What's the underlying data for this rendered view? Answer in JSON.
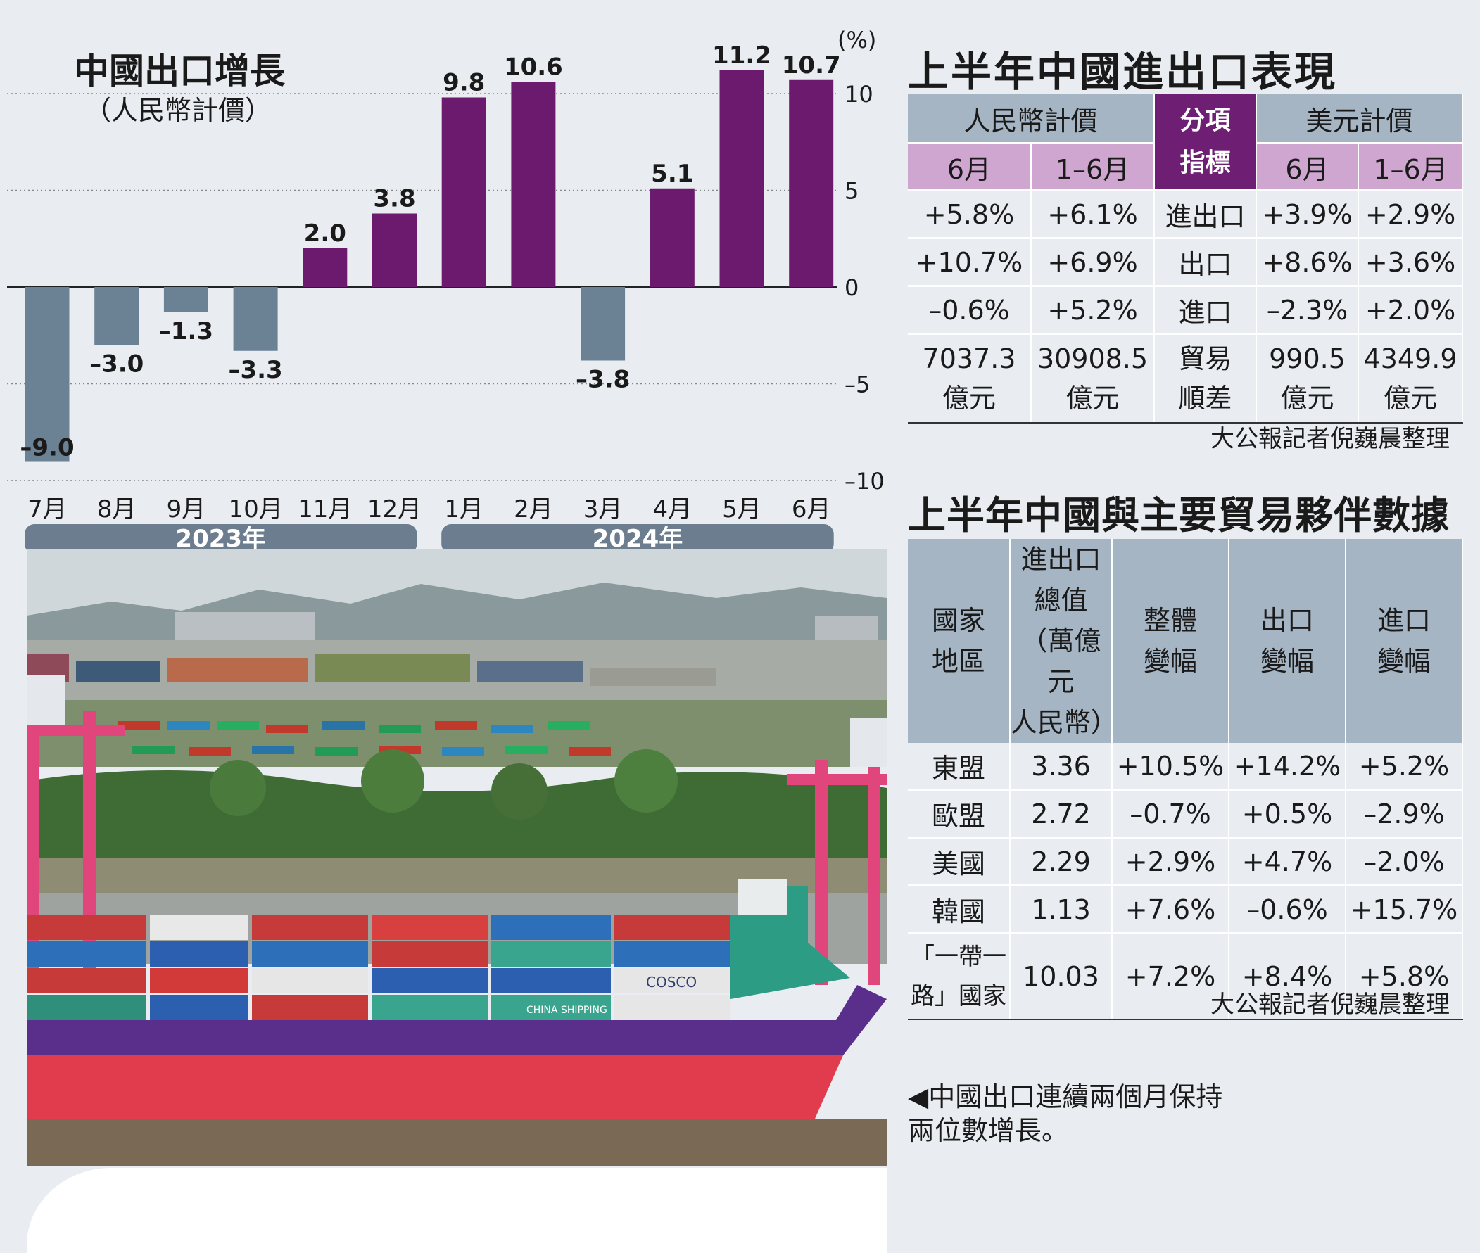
{
  "chart_data": {
    "type": "bar",
    "title": "中國出口增長",
    "subtitle": "（人民幣計價）",
    "unit": "(%)",
    "categories": [
      "7月",
      "8月",
      "9月",
      "10月",
      "11月",
      "12月",
      "1月",
      "2月",
      "3月",
      "4月",
      "5月",
      "6月"
    ],
    "values": [
      -9.0,
      -3.0,
      -1.3,
      -3.3,
      2.0,
      3.8,
      9.8,
      10.6,
      -3.8,
      5.1,
      11.2,
      10.7
    ],
    "value_labels": [
      "–9.0",
      "–3.0",
      "–1.3",
      "–3.3",
      "2.0",
      "3.8",
      "9.8",
      "10.6",
      "–3.8",
      "5.1",
      "11.2",
      "10.7"
    ],
    "yticks": [
      10,
      5,
      0,
      -5,
      -10
    ],
    "ytick_labels": [
      "10",
      "5",
      "0",
      "–5",
      "–10"
    ],
    "ylim": [
      -10,
      12
    ],
    "year_groups": [
      {
        "label": "2023年",
        "from": 0,
        "to": 5
      },
      {
        "label": "2024年",
        "from": 6,
        "to": 11
      }
    ],
    "colors": {
      "positive": "#6c1a6e",
      "negative": "#6b8294",
      "group_bar": "#6b7d8e"
    },
    "grid": true
  },
  "table1": {
    "title": "上半年中國進出口表現",
    "group_rmb": "人民幣計價",
    "group_mid": "分項指標",
    "group_usd": "美元計價",
    "sub_headers": [
      "6月",
      "1–6月",
      "6月",
      "1–6月"
    ],
    "rows": [
      {
        "rmb_jun": "+5.8%",
        "rmb_h1": "+6.1%",
        "item": "進出口",
        "usd_jun": "+3.9%",
        "usd_h1": "+2.9%"
      },
      {
        "rmb_jun": "+10.7%",
        "rmb_h1": "+6.9%",
        "item": "出口",
        "usd_jun": "+8.6%",
        "usd_h1": "+3.6%"
      },
      {
        "rmb_jun": "–0.6%",
        "rmb_h1": "+5.2%",
        "item": "進口",
        "usd_jun": "–2.3%",
        "usd_h1": "+2.0%"
      }
    ],
    "last_row": {
      "rmb_jun": [
        "7037.3",
        "億元"
      ],
      "rmb_h1": [
        "30908.5",
        "億元"
      ],
      "item": [
        "貿易",
        "順差"
      ],
      "usd_jun": [
        "990.5",
        "億元"
      ],
      "usd_h1": [
        "4349.9",
        "億元"
      ]
    },
    "credit": "大公報記者倪巍晨整理"
  },
  "table2": {
    "title": "上半年中國與主要貿易夥伴數據",
    "headers": [
      [
        "國家",
        "地區"
      ],
      [
        "進出口",
        "總值",
        "（萬億元",
        "人民幣）"
      ],
      [
        "整體",
        "變幅"
      ],
      [
        "出口",
        "變幅"
      ],
      [
        "進口",
        "變幅"
      ]
    ],
    "rows": [
      {
        "region": "東盟",
        "total": "3.36",
        "overall": "+10.5%",
        "export": "+14.2%",
        "import": "+5.2%"
      },
      {
        "region": "歐盟",
        "total": "2.72",
        "overall": "–0.7%",
        "export": "+0.5%",
        "import": "–2.9%"
      },
      {
        "region": "美國",
        "total": "2.29",
        "overall": "+2.9%",
        "export": "+4.7%",
        "import": "–2.0%"
      },
      {
        "region": "韓國",
        "total": "1.13",
        "overall": "+7.6%",
        "export": "–0.6%",
        "import": "+15.7%"
      }
    ],
    "last_row": {
      "region": [
        "「一帶一",
        "路」國家"
      ],
      "total": "10.03",
      "overall": "+7.2%",
      "export": "+8.4%",
      "import": "+5.8%"
    },
    "credit": "大公報記者倪巍晨整理"
  },
  "photo_caption": [
    "◀中國出口連續兩個月保持",
    "兩位數增長。"
  ],
  "photo_labels": {
    "cosco": "COSCO",
    "china_shipping": "CHINA SHIPPING"
  }
}
